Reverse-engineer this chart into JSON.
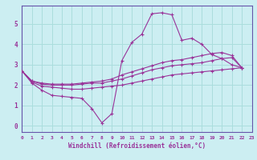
{
  "background_color": "#cceef2",
  "grid_color": "#aadddd",
  "line_color": "#993399",
  "xlabel": "Windchill (Refroidissement éolien,°C)",
  "xlim": [
    0,
    23
  ],
  "ylim": [
    -0.3,
    5.9
  ],
  "yticks": [
    0,
    1,
    2,
    3,
    4,
    5
  ],
  "xticks": [
    0,
    1,
    2,
    3,
    4,
    5,
    6,
    7,
    8,
    9,
    10,
    11,
    12,
    13,
    14,
    15,
    16,
    17,
    18,
    19,
    20,
    21,
    22,
    23
  ],
  "series": [
    [
      2.7,
      2.1,
      1.75,
      1.5,
      1.45,
      1.4,
      1.35,
      0.85,
      0.15,
      0.6,
      3.2,
      4.1,
      4.5,
      5.5,
      5.55,
      5.45,
      4.2,
      4.3,
      4.0,
      3.5,
      3.3,
      3.0,
      2.85
    ],
    [
      2.7,
      2.15,
      1.95,
      1.9,
      1.85,
      1.8,
      1.8,
      1.85,
      1.9,
      1.95,
      2.0,
      2.1,
      2.2,
      2.3,
      2.4,
      2.5,
      2.55,
      2.6,
      2.65,
      2.7,
      2.75,
      2.8,
      2.85
    ],
    [
      2.7,
      2.2,
      2.05,
      2.0,
      2.0,
      2.0,
      2.05,
      2.1,
      2.1,
      2.2,
      2.3,
      2.45,
      2.6,
      2.75,
      2.85,
      2.95,
      3.0,
      3.05,
      3.1,
      3.2,
      3.3,
      3.35,
      2.85
    ],
    [
      2.7,
      2.2,
      2.1,
      2.05,
      2.05,
      2.05,
      2.1,
      2.15,
      2.2,
      2.3,
      2.5,
      2.65,
      2.8,
      2.95,
      3.1,
      3.2,
      3.25,
      3.35,
      3.45,
      3.55,
      3.6,
      3.45,
      2.85
    ]
  ]
}
